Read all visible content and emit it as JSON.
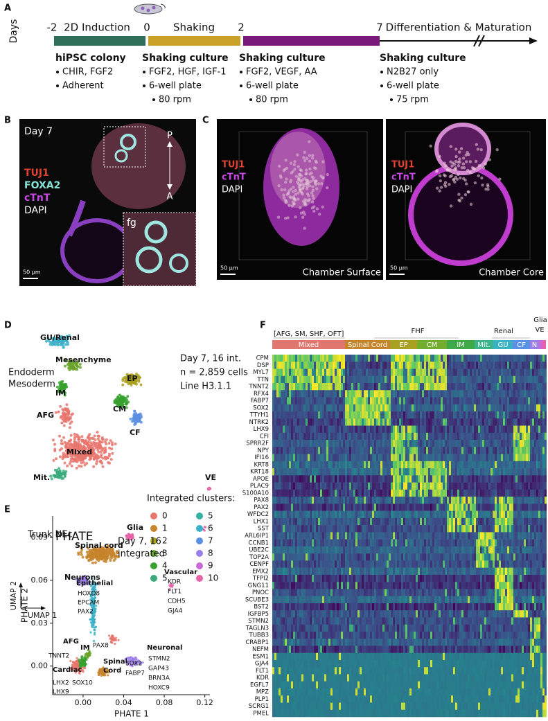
{
  "panels": {
    "a": {
      "label": "A",
      "axis": "Days",
      "days": [
        "-2",
        "0",
        "2",
        "7"
      ],
      "phases": [
        "2D Induction",
        "Shaking",
        "Differentiation & Maturation"
      ],
      "stages": [
        {
          "title": "hiPSC colony",
          "items": [
            "CHIR, FGF2",
            "Adherent"
          ]
        },
        {
          "title": "Shaking culture",
          "items": [
            "FGF2, HGF, IGF-1",
            "6-well plate",
            "80 rpm"
          ]
        },
        {
          "title": "Shaking culture",
          "items": [
            "FGF2, VEGF, AA",
            "6-well plate",
            "80 rpm"
          ]
        },
        {
          "title": "Shaking culture",
          "items": [
            "N2B27 only",
            "6-well plate",
            "75 rpm"
          ]
        }
      ]
    },
    "b": {
      "label": "B",
      "day": "Day 7",
      "stains": [
        "TUJ1",
        "FOXA2",
        "cTnT",
        "DAPI"
      ],
      "axis_top": "P",
      "axis_bottom": "A",
      "inset": "fg",
      "scale": "50 µm"
    },
    "c": {
      "label": "C",
      "images": [
        {
          "stains": [
            "TUJ1",
            "cTnT",
            "DAPI"
          ],
          "caption": "Chamber Surface",
          "scale": "50 µm"
        },
        {
          "stains": [
            "TUJ1",
            "cTnT",
            "DAPI"
          ],
          "caption": "Chamber Core",
          "scale": "50 µm"
        }
      ]
    },
    "d": {
      "label": "D",
      "info": [
        "Day 7, 16 int.",
        "n = 2,859 cells",
        "Line H3.1.1"
      ],
      "regions": [
        "Endoderm",
        "Mesoderm",
        "Trunk NEc"
      ],
      "clusters": [
        "GU/Renal",
        "Mesenchyme",
        "IM",
        "AFG",
        "EP",
        "CM",
        "Mixed",
        "CF",
        "Mit.",
        "VE",
        "Glia",
        "Spinal cord",
        "Neurons"
      ],
      "legend_title": "Integrated clusters:",
      "legend": [
        {
          "label": "0",
          "color": "#e8766d"
        },
        {
          "label": "1",
          "color": "#c6842b"
        },
        {
          "label": "2",
          "color": "#a9a021"
        },
        {
          "label": "3",
          "color": "#6aa52c"
        },
        {
          "label": "4",
          "color": "#37a12e"
        },
        {
          "label": "5",
          "color": "#3aaa7a"
        },
        {
          "label": "5",
          "color": "#35b2a0"
        },
        {
          "label": "6",
          "color": "#39b0c8"
        },
        {
          "label": "7",
          "color": "#5a8fe3"
        },
        {
          "label": "8",
          "color": "#9b7ee8"
        },
        {
          "label": "9",
          "color": "#c96ad6"
        },
        {
          "label": "10",
          "color": "#e561a8"
        }
      ],
      "x_axis": "UMAP 1",
      "y_axis": "UMAP 2"
    },
    "e": {
      "label": "E",
      "title": "PHATE",
      "info": [
        "Day 7, 16",
        "integrated"
      ],
      "annotations": [
        "Epithelial",
        "HOXD8",
        "EPCAM",
        "PAX2",
        "Vascular",
        "KDR",
        "FLT1",
        "CDH5",
        "GJA4",
        "AFG",
        "IM",
        "PAX8",
        "TNNT2",
        "Cardiac",
        "Spinal",
        "Cord",
        "Neuronal",
        "STMN2",
        "GAP43",
        "BRN3A",
        "HOXC9",
        "SOX2",
        "FABP7",
        "LHX2",
        "LHX9",
        "SOX10"
      ],
      "xlabel": "PHATE 1",
      "ylabel": "PHATE 2",
      "xlim": [
        -0.03,
        0.125
      ],
      "ylim": [
        -0.02,
        0.105
      ],
      "xticks": [
        {
          "value": 0,
          "label": "0.00"
        },
        0.04,
        0.08,
        0.12
      ],
      "yticks": [
        {
          "value": 0,
          "label": "0.00"
        },
        0.03,
        0.06,
        0.09
      ]
    },
    "f": {
      "label": "F",
      "top_labels": [
        "[AFG, SM, SHF, OFT]",
        "FHF",
        "Renal",
        "Glia",
        "VE"
      ],
      "groups": [
        {
          "name": "Mixed",
          "color": "#e0766d"
        },
        {
          "name": "Spinal Cord",
          "color": "#c6842b"
        },
        {
          "name": "EP",
          "color": "#a7a021"
        },
        {
          "name": "CM",
          "color": "#72ad2e"
        },
        {
          "name": "IM",
          "color": "#3daa47"
        },
        {
          "name": "Mit.",
          "color": "#3cb48b"
        },
        {
          "name": "GU",
          "color": "#39b3c4"
        },
        {
          "name": "CF",
          "color": "#5991e6"
        },
        {
          "name": "N",
          "color": "#9c7ee8"
        },
        {
          "name": null,
          "color": "#c968d8"
        },
        {
          "name": null,
          "color": "#e85fb0"
        }
      ],
      "genes": [
        "CPM",
        "DSP",
        "MYL7",
        "TTN",
        "TNNT2",
        "RFX4",
        "FABP7",
        "SOX2",
        "TTYH1",
        "NTRK2",
        "LHX9",
        "CFI",
        "SPRR2F",
        "NPY",
        "IFI16",
        "KRT8",
        "KRT18",
        "APOE",
        "PLAC9",
        "S100A10",
        "PAX8",
        "PAX2",
        "WFDC2",
        "LHX1",
        "SST",
        "ARL6IP1",
        "CCNB1",
        "UBE2C",
        "TOP2A",
        "CENPF",
        "EMX2",
        "TFPI2",
        "GNG11",
        "PNOC",
        "SCUBE3",
        "BST2",
        "IGFBP5",
        "STMN2",
        "TAGLN3",
        "TUBB3",
        "CRABP1",
        "NEFM",
        "ESM1",
        "GJA4",
        "FLT1",
        "KDR",
        "EGFL7",
        "MPZ",
        "PLP1",
        "SCRG1",
        "PMEL"
      ]
    }
  }
}
